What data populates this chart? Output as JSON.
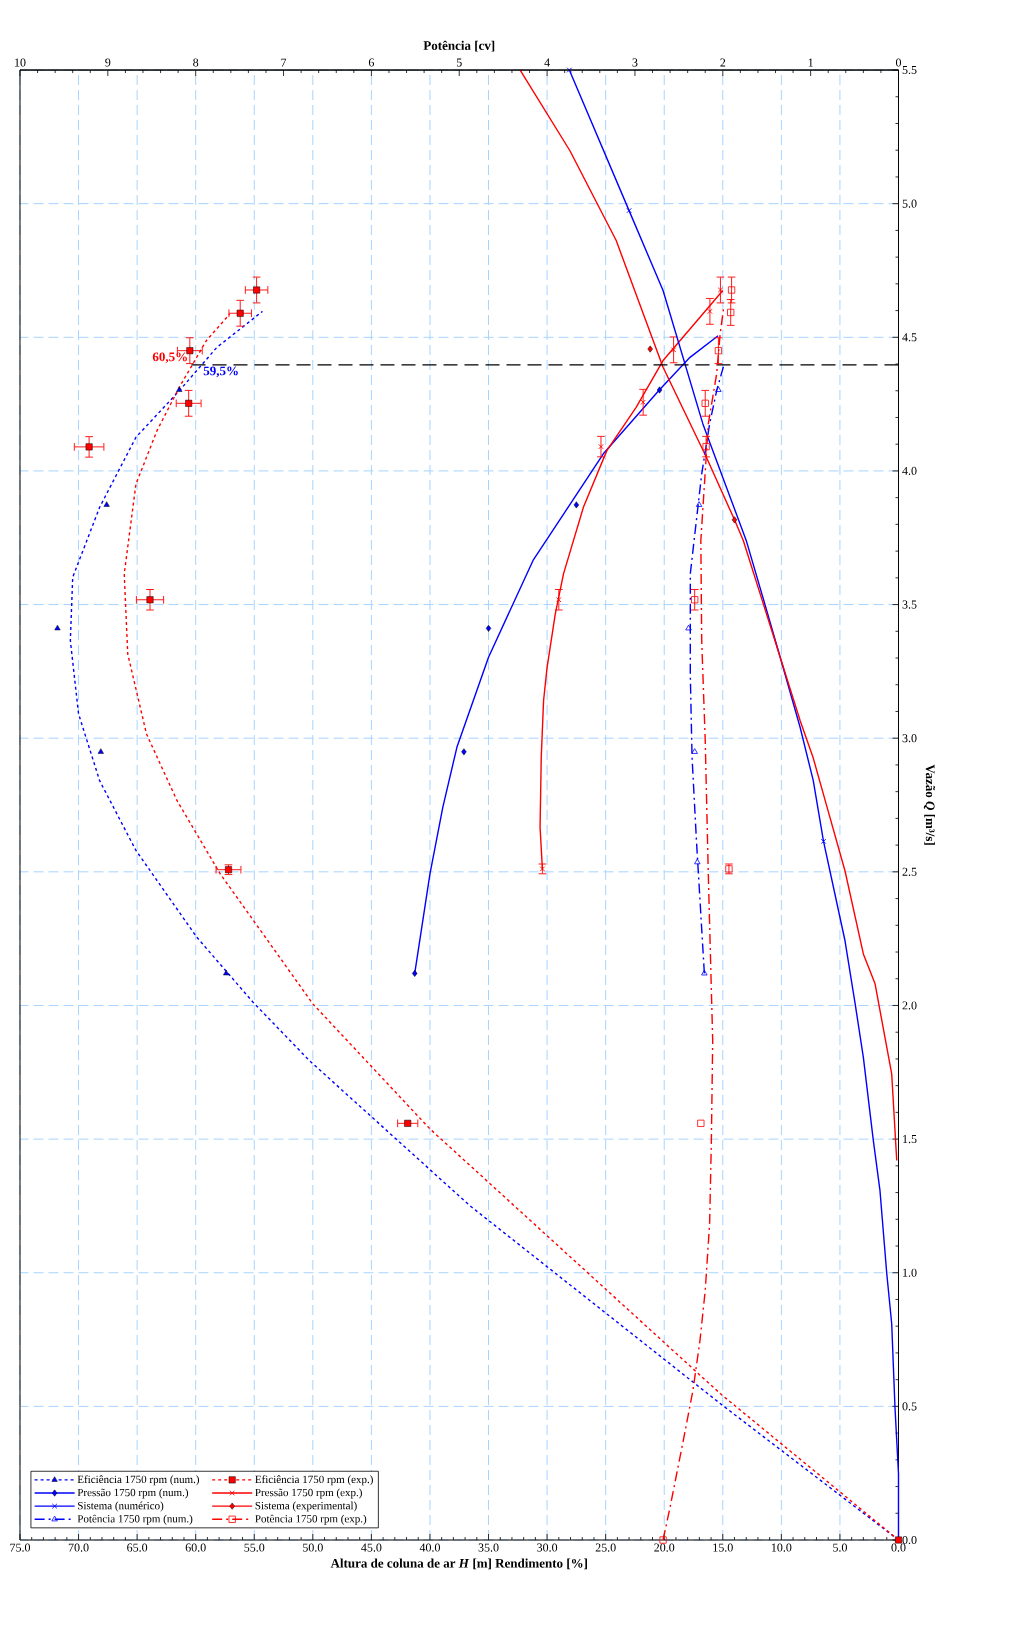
{
  "chart_data": {
    "type": "line",
    "xlabel": "Altura de coluna de ar *H* [m] Rendimento [%]",
    "ylabel": "Vazão *Q* [m³/s]",
    "x2label": "Potência [cv]",
    "xlim": [
      75,
      0
    ],
    "xticks": [
      {
        "value": 75,
        "label": "75.0"
      },
      {
        "value": 70,
        "label": "70.0"
      },
      {
        "value": 65,
        "label": "65.0"
      },
      {
        "value": 60,
        "label": "60.0"
      },
      {
        "value": 55,
        "label": "55.0"
      },
      {
        "value": 50,
        "label": "50.0"
      },
      {
        "value": 45,
        "label": "45.0"
      },
      {
        "value": 40,
        "label": "40.0"
      },
      {
        "value": 35,
        "label": "35.0"
      },
      {
        "value": 30,
        "label": "30.0"
      },
      {
        "value": 25,
        "label": "25.0"
      },
      {
        "value": 20,
        "label": "20.0"
      },
      {
        "value": 15,
        "label": "15.0"
      },
      {
        "value": 10,
        "label": "10.0"
      },
      {
        "value": 5,
        "label": "5.0"
      },
      {
        "value": 0,
        "label": "0.0"
      }
    ],
    "ylim": [
      0,
      5.5
    ],
    "yticks": [
      {
        "value": 0,
        "label": "0.0"
      },
      {
        "value": 0.5,
        "label": "0.5"
      },
      {
        "value": 1,
        "label": "1.0"
      },
      {
        "value": 1.5,
        "label": "1.5"
      },
      {
        "value": 2,
        "label": "2.0"
      },
      {
        "value": 2.5,
        "label": "2.5"
      },
      {
        "value": 3,
        "label": "3.0"
      },
      {
        "value": 3.5,
        "label": "3.5"
      },
      {
        "value": 4,
        "label": "4.0"
      },
      {
        "value": 4.5,
        "label": "4.5"
      },
      {
        "value": 5,
        "label": "5.0"
      },
      {
        "value": 5.5,
        "label": "5.5"
      }
    ],
    "x2lim": [
      10,
      0
    ],
    "x2ticks": [
      10,
      9,
      8,
      7,
      6,
      5,
      4,
      3,
      2,
      1,
      0
    ],
    "grid": true,
    "legend": "bottom left",
    "annotations": [
      {
        "text": "60,5%",
        "x": 60.5,
        "y": 4.397
      },
      {
        "text": "59,5%",
        "x": 59.5,
        "y": 4.397
      }
    ],
    "series": [
      {
        "name": "Eficiência 1750 rpm (num.)",
        "color": "#0000ff",
        "line_style": "dotted",
        "x": [
          0,
          15.0,
          36.6,
          50.3,
          55.1,
          59.9,
          65.1,
          68.2,
          70.0,
          70.7,
          70.5,
          68.2,
          65.1,
          61.4,
          58.2,
          54.3
        ],
        "values": [
          0,
          0.503,
          1.251,
          1.794,
          2.012,
          2.255,
          2.58,
          2.841,
          3.091,
          3.365,
          3.602,
          3.864,
          4.126,
          4.3,
          4.462,
          4.597
        ]
      },
      {
        "type": "scatter",
        "color": "#0000ff",
        "marker": "triangle",
        "x": [
          0,
          57.4,
          68.1,
          71.8,
          67.6,
          61.4
        ],
        "values": [
          0,
          2.12,
          2.949,
          3.411,
          3.873,
          4.303
        ]
      },
      {
        "name": "Eficiência 1750 rpm (exp.)",
        "color": "#ff0000",
        "line_style": "dotted",
        "x": [
          0,
          15.2,
          40.0,
          50.0,
          57.9,
          61.6,
          64.2,
          65.8,
          66.1,
          65.1,
          63.3,
          61.4,
          59.1,
          57.1
        ],
        "values": [
          0,
          0.547,
          1.538,
          2.006,
          2.492,
          2.767,
          3.016,
          3.315,
          3.615,
          3.951,
          4.151,
          4.313,
          4.487,
          4.587
        ]
      },
      {
        "type": "scatter",
        "color": "#ff0000",
        "marker": "square",
        "x": [
          0,
          41.9,
          57.2,
          63.9,
          69.1,
          60.6,
          60.5,
          56.2,
          54.8
        ],
        "values": [
          0,
          1.559,
          2.508,
          3.518,
          4.09,
          4.253,
          4.45,
          4.59,
          4.677
        ],
        "xerrors": [
          null,
          0.9,
          1.1,
          1.2,
          1.3,
          1.1,
          1.1,
          1.0,
          1.0
        ],
        "errors": [
          null,
          null,
          0.02,
          0.04,
          0.04,
          0.05,
          0.05,
          0.05,
          0.05
        ]
      },
      {
        "name": "Pressão 1750 rpm (num.)",
        "color": "#0000ff",
        "line_style": "solid",
        "x": [
          41.3,
          40.0,
          38.9,
          37.7,
          35.0,
          31.2,
          25.2,
          20.4,
          17.8,
          15.4
        ],
        "values": [
          2.12,
          2.492,
          2.742,
          2.966,
          3.303,
          3.665,
          4.064,
          4.304,
          4.425,
          4.506
        ]
      },
      {
        "type": "scatter",
        "color": "#0000ff",
        "marker": "diamond",
        "x": [
          41.3,
          37.1,
          35.0,
          27.5,
          20.4
        ],
        "values": [
          2.12,
          2.949,
          3.411,
          3.873,
          4.303
        ]
      },
      {
        "name": "Pressão 1750 rpm (exp.)",
        "color": "#ff0000",
        "line_style": "solid",
        "x": [
          30.4,
          30.6,
          30.5,
          30.3,
          30.0,
          29.3,
          28.6,
          26.9,
          24.9,
          22.4,
          20.1,
          17.2,
          15.0
        ],
        "values": [
          2.511,
          2.667,
          2.929,
          3.141,
          3.265,
          3.465,
          3.615,
          3.864,
          4.076,
          4.238,
          4.413,
          4.562,
          4.675
        ]
      },
      {
        "type": "scatter",
        "color": "#ff0000",
        "marker": "cross",
        "x": [
          30.4,
          29.0,
          25.4,
          21.8,
          19.2,
          16.1,
          15.2
        ],
        "values": [
          2.511,
          3.518,
          4.091,
          4.257,
          4.453,
          4.597,
          4.677
        ],
        "errors": [
          0.02,
          0.04,
          0.04,
          0.05,
          0.05,
          0.05,
          0.05
        ]
      },
      {
        "name": "Sistema (numérico)",
        "color": "#0000ff",
        "line_style": "solid",
        "x": [
          0,
          0,
          0.3,
          0.58,
          1.0,
          1.58,
          2.15,
          3.0,
          3.7,
          4.57,
          6.4,
          7.28,
          8.4,
          10.1,
          11.5,
          13.0,
          16.7,
          20.1,
          23.0,
          28.1
        ],
        "values": [
          0,
          0.248,
          0.497,
          0.809,
          0.996,
          1.307,
          1.495,
          1.806,
          2.006,
          2.243,
          2.614,
          2.842,
          3.041,
          3.303,
          3.515,
          3.74,
          4.176,
          4.675,
          4.974,
          5.5
        ]
      },
      {
        "type": "scatter",
        "color": "#0000ff",
        "marker": "cross",
        "x": [
          6.4,
          23.0,
          28.1
        ],
        "values": [
          2.614,
          4.974,
          5.5
        ]
      },
      {
        "name": "Sistema (experimental)",
        "color": "#ff0000",
        "line_style": "solid",
        "x": [
          0.15,
          0.58,
          2.0,
          3.0,
          4.57,
          6.1,
          7.3,
          8.4,
          10.1,
          13.25,
          14.0,
          16.4,
          20.1,
          24.1,
          28.05,
          32.3
        ],
        "values": [
          1.42,
          1.744,
          2.081,
          2.193,
          2.504,
          2.742,
          2.929,
          3.066,
          3.303,
          3.74,
          3.817,
          4.051,
          4.388,
          4.862,
          5.198,
          5.5
        ]
      },
      {
        "type": "scatter",
        "color": "#ff0000",
        "marker": "diamond",
        "x": [
          14.0,
          21.2
        ],
        "values": [
          3.817,
          4.456
        ]
      },
      {
        "name": "Potência 1750 rpm (num.)",
        "color": "#0000ff",
        "line_style": "dashdot",
        "axis": "x2",
        "x": [
          2.21,
          2.3,
          2.35,
          2.37,
          2.37,
          2.24,
          2.15,
          2.07,
          1.99
        ],
        "values": [
          2.12,
          2.617,
          2.929,
          3.24,
          3.615,
          3.989,
          4.176,
          4.3,
          4.394
        ]
      },
      {
        "type": "scatter",
        "color": "#0000ff",
        "marker": "triangle",
        "axis": "x2",
        "x": [
          2.21,
          2.29,
          2.32,
          2.39,
          2.27,
          2.05
        ],
        "values": [
          2.12,
          2.536,
          2.949,
          3.411,
          3.873,
          4.303
        ]
      },
      {
        "name": "Potência 1750 rpm (exp.)",
        "color": "#ff0000",
        "line_style": "dashdot",
        "axis": "x2",
        "x": [
          2.68,
          2.6,
          2.45,
          2.34,
          2.26,
          2.2,
          2.15,
          2.13,
          2.115,
          2.165,
          2.2,
          2.24,
          2.25,
          2.165,
          2.07,
          2.03,
          1.99
        ],
        "values": [
          0,
          0.123,
          0.372,
          0.559,
          0.746,
          0.933,
          1.183,
          1.495,
          1.869,
          2.492,
          2.991,
          3.365,
          3.74,
          4.176,
          4.363,
          4.513,
          4.612
        ]
      },
      {
        "type": "scatter",
        "color": "#ff0000",
        "marker": "square",
        "axis": "x2",
        "x": [
          2.68,
          2.25,
          1.93,
          2.32,
          2.19,
          2.2,
          2.05,
          1.91,
          1.9
        ],
        "values": [
          0,
          1.559,
          2.511,
          3.518,
          4.091,
          4.253,
          4.45,
          4.593,
          4.677
        ],
        "errors": [
          null,
          null,
          0.02,
          0.04,
          0.04,
          0.05,
          0.05,
          0.05,
          0.05
        ]
      },
      {
        "color": "#000000",
        "line_style": "dashed",
        "x": [
          0,
          60.5
        ],
        "values": [
          4.397,
          4.397
        ]
      }
    ]
  }
}
